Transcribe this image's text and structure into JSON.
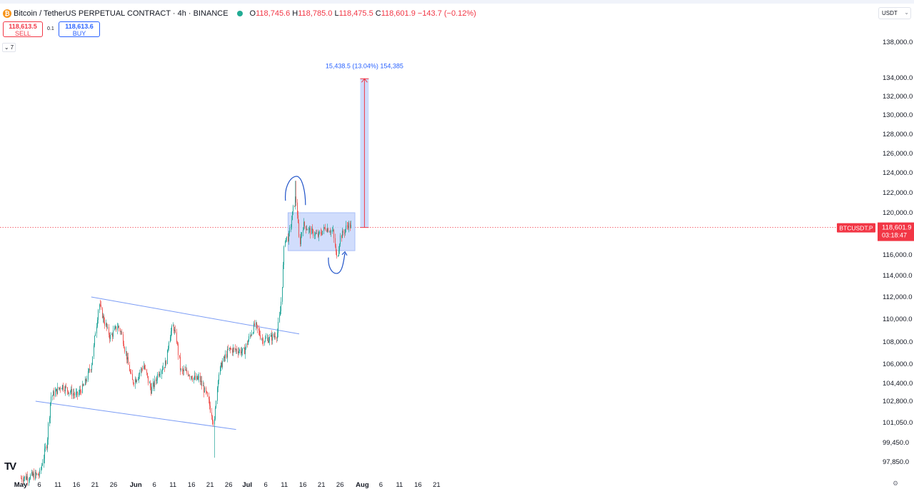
{
  "header": {
    "symbol": "Bitcoin / TetherUS PERPETUAL CONTRACT · 4h · BINANCE",
    "open_label": "O",
    "open": "118,745.6",
    "high_label": "H",
    "high": "118,785.0",
    "low_label": "L",
    "low": "118,475.5",
    "close_label": "C",
    "close": "118,601.9",
    "change": "−143.7 (−0.12%)"
  },
  "trade": {
    "sell_price": "118,613.5",
    "sell_label": "SELL",
    "spread": "0.1",
    "buy_price": "118,613.6",
    "buy_label": "BUY"
  },
  "indicator_toggle": "7",
  "currency": "USDT",
  "logo_text": "TV",
  "colors": {
    "up": "#26a69a",
    "down": "#ef5350",
    "price_line": "#f23645",
    "trendline": "#7b9cf5",
    "box_fill": "#c9d7fb",
    "drawing": "#2154c9"
  },
  "chart_data": {
    "type": "candlestick",
    "symbol_label": "BTCUSDT.P",
    "last_price": 118601.9,
    "last_price_label": "118,601.9",
    "countdown": "03:18:47",
    "y_tick_labels": [
      "138,000.0",
      "134,000.0",
      "132,000.0",
      "130,000.0",
      "128,000.0",
      "126,000.0",
      "124,000.0",
      "122,000.0",
      "120,000.0",
      "116,000.0",
      "114,000.0",
      "112,000.0",
      "110,000.0",
      "108,000.0",
      "106,000.0",
      "104,400.0",
      "102,800.0",
      "101,050.0",
      "99,450.0",
      "97,850.0"
    ],
    "y_tick_values": [
      138000,
      134000,
      132000,
      130000,
      128000,
      126000,
      124000,
      122000,
      120000,
      116000,
      114000,
      112000,
      110000,
      108000,
      106000,
      104400,
      102800,
      101050,
      99450,
      97850
    ],
    "x_tick_labels": [
      "May",
      "6",
      "11",
      "16",
      "21",
      "26",
      "Jun",
      "6",
      "11",
      "16",
      "21",
      "26",
      "Jul",
      "6",
      "11",
      "16",
      "21",
      "26",
      "Aug",
      "6",
      "11",
      "16",
      "21"
    ],
    "x_tick_dates": [
      "2025-05-01",
      "2025-05-06",
      "2025-05-11",
      "2025-05-16",
      "2025-05-21",
      "2025-05-26",
      "2025-06-01",
      "2025-06-06",
      "2025-06-11",
      "2025-06-16",
      "2025-06-21",
      "2025-06-26",
      "2025-07-01",
      "2025-07-06",
      "2025-07-11",
      "2025-07-16",
      "2025-07-21",
      "2025-07-26",
      "2025-08-01",
      "2025-08-06",
      "2025-08-11",
      "2025-08-16",
      "2025-08-21"
    ],
    "price_path": [
      [
        "2025-05-01",
        96500
      ],
      [
        "2025-05-06",
        96800
      ],
      [
        "2025-05-08",
        99500
      ],
      [
        "2025-05-09",
        103200
      ],
      [
        "2025-05-12",
        104200
      ],
      [
        "2025-05-14",
        103700
      ],
      [
        "2025-05-16",
        103300
      ],
      [
        "2025-05-18",
        104200
      ],
      [
        "2025-05-20",
        106000
      ],
      [
        "2025-05-21",
        108800
      ],
      [
        "2025-05-22",
        111400
      ],
      [
        "2025-05-23",
        110200
      ],
      [
        "2025-05-25",
        108400
      ],
      [
        "2025-05-27",
        109400
      ],
      [
        "2025-05-28",
        108800
      ],
      [
        "2025-05-30",
        105800
      ],
      [
        "2025-05-31",
        104500
      ],
      [
        "2025-06-01",
        104800
      ],
      [
        "2025-06-03",
        105900
      ],
      [
        "2025-06-05",
        103800
      ],
      [
        "2025-06-06",
        104400
      ],
      [
        "2025-06-07",
        105300
      ],
      [
        "2025-06-09",
        106100
      ],
      [
        "2025-06-10",
        108600
      ],
      [
        "2025-06-11",
        109400
      ],
      [
        "2025-06-12",
        108000
      ],
      [
        "2025-06-13",
        105400
      ],
      [
        "2025-06-15",
        105300
      ],
      [
        "2025-06-17",
        104700
      ],
      [
        "2025-06-18",
        104800
      ],
      [
        "2025-06-20",
        103300
      ],
      [
        "2025-06-21",
        102200
      ],
      [
        "2025-06-22",
        100900
      ],
      [
        "2025-06-23",
        104900
      ],
      [
        "2025-06-24",
        106000
      ],
      [
        "2025-06-26",
        107300
      ],
      [
        "2025-06-28",
        107300
      ],
      [
        "2025-06-30",
        107100
      ],
      [
        "2025-07-02",
        108800
      ],
      [
        "2025-07-03",
        109500
      ],
      [
        "2025-07-05",
        108200
      ],
      [
        "2025-07-07",
        108300
      ],
      [
        "2025-07-09",
        108700
      ],
      [
        "2025-07-10",
        111200
      ],
      [
        "2025-07-11",
        117600
      ],
      [
        "2025-07-12",
        117600
      ],
      [
        "2025-07-14",
        121700
      ],
      [
        "2025-07-15",
        117000
      ],
      [
        "2025-07-16",
        118900
      ],
      [
        "2025-07-18",
        118200
      ],
      [
        "2025-07-20",
        117800
      ],
      [
        "2025-07-22",
        118600
      ],
      [
        "2025-07-24",
        118200
      ],
      [
        "2025-07-25",
        115600
      ],
      [
        "2025-07-26",
        117700
      ],
      [
        "2025-07-27",
        118200
      ],
      [
        "2025-07-28",
        118900
      ],
      [
        "2025-07-29",
        118601.9
      ]
    ],
    "extremes": {
      "high": 123200,
      "high_date": "2025-07-14",
      "low": 98200,
      "low_date": "2025-06-22"
    },
    "trendlines": [
      {
        "from": [
          "2025-05-20",
          112000
        ],
        "to": [
          "2025-07-15",
          108700
        ]
      },
      {
        "from": [
          "2025-05-05",
          102800
        ],
        "to": [
          "2025-06-28",
          100500
        ]
      }
    ],
    "range_box": {
      "from": "2025-07-12",
      "to": "2025-07-30",
      "top": 120000,
      "bottom": 116400
    },
    "projection": {
      "from": "2025-08-01",
      "base": 118600,
      "target": 133900,
      "label": "15,438.5 (13.04%) 154,385"
    }
  }
}
